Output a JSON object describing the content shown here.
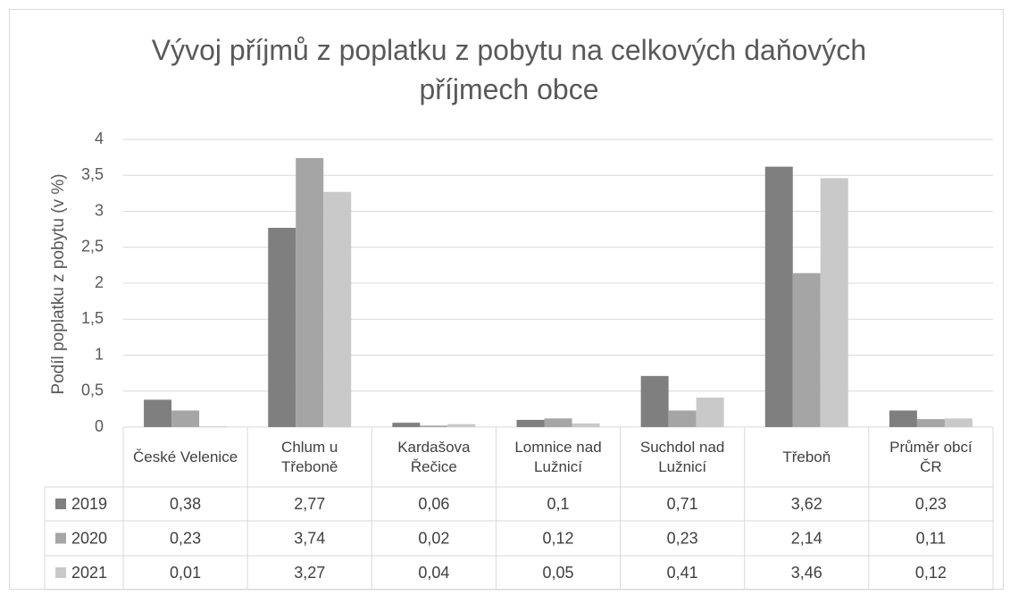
{
  "chart_data": {
    "type": "bar",
    "title": "Vývoj příjmů z poplatku z pobytu na celkových daňových příjmech obce",
    "y_label": "Podíl poplatku z pobytu (v %)",
    "categories": [
      "České Velenice",
      "Chlum u Třeboně",
      "Kardašova Řečice",
      "Lomnice nad Lužnicí",
      "Suchdol nad Lužnicí",
      "Třeboň",
      "Průměr obcí ČR"
    ],
    "series": [
      {
        "name": "2019",
        "color": "#7f7f7f",
        "values": [
          0.38,
          2.77,
          0.06,
          0.1,
          0.71,
          3.62,
          0.23
        ],
        "value_labels": [
          "0,38",
          "2,77",
          "0,06",
          "0,1",
          "0,71",
          "3,62",
          "0,23"
        ]
      },
      {
        "name": "2020",
        "color": "#a5a5a5",
        "values": [
          0.23,
          3.74,
          0.02,
          0.12,
          0.23,
          2.14,
          0.11
        ],
        "value_labels": [
          "0,23",
          "3,74",
          "0,02",
          "0,12",
          "0,23",
          "2,14",
          "0,11"
        ]
      },
      {
        "name": "2021",
        "color": "#c9c9c9",
        "values": [
          0.01,
          3.27,
          0.04,
          0.05,
          0.41,
          3.46,
          0.12
        ],
        "value_labels": [
          "0,01",
          "3,27",
          "0,04",
          "0,05",
          "0,41",
          "3,46",
          "0,12"
        ]
      }
    ],
    "ylim": [
      0,
      4
    ],
    "yticks": [
      0,
      {
        "value": 0.5,
        "label": "0,5"
      },
      1,
      {
        "value": 1.5,
        "label": "1,5"
      },
      2,
      {
        "value": 2.5,
        "label": "2,5"
      },
      3,
      {
        "value": 3.5,
        "label": "3,5"
      },
      4
    ],
    "grid": true
  }
}
